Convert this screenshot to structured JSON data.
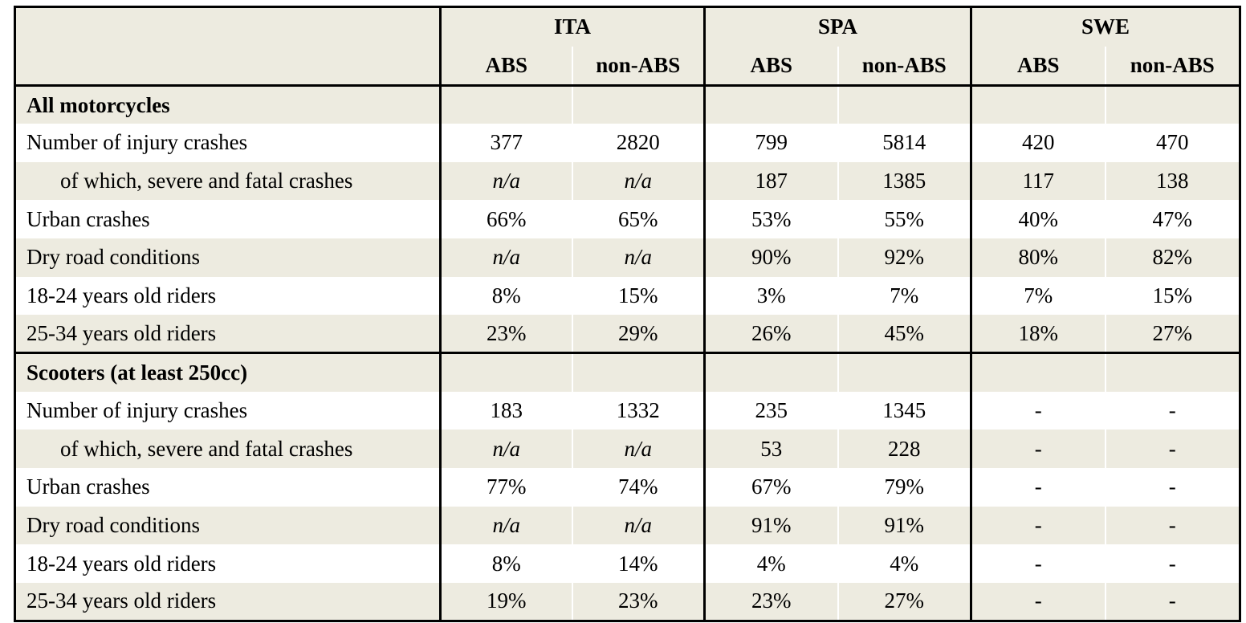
{
  "table": {
    "groups": [
      {
        "label": "ITA"
      },
      {
        "label": "SPA"
      },
      {
        "label": "SWE"
      }
    ],
    "subheaders": [
      "ABS",
      "non-ABS"
    ],
    "sections": [
      {
        "title": "All motorcycles",
        "rows": [
          {
            "label": "Number of injury crashes",
            "indent": false,
            "values": [
              "377",
              "2820",
              "799",
              "5814",
              "420",
              "470"
            ]
          },
          {
            "label": "of which, severe and fatal crashes",
            "indent": true,
            "values": [
              "n/a",
              "n/a",
              "187",
              "1385",
              "117",
              "138"
            ]
          },
          {
            "label": "Urban crashes",
            "indent": false,
            "values": [
              "66%",
              "65%",
              "53%",
              "55%",
              "40%",
              "47%"
            ]
          },
          {
            "label": "Dry road conditions",
            "indent": false,
            "values": [
              "n/a",
              "n/a",
              "90%",
              "92%",
              "80%",
              "82%"
            ]
          },
          {
            "label": "18-24 years old riders",
            "indent": false,
            "values": [
              "8%",
              "15%",
              "3%",
              "7%",
              "7%",
              "15%"
            ]
          },
          {
            "label": "25-34 years old riders",
            "indent": false,
            "values": [
              "23%",
              "29%",
              "26%",
              "45%",
              "18%",
              "27%"
            ]
          }
        ]
      },
      {
        "title": "Scooters (at least 250cc)",
        "rows": [
          {
            "label": "Number of injury crashes",
            "indent": false,
            "values": [
              "183",
              "1332",
              "235",
              "1345",
              "-",
              "-"
            ]
          },
          {
            "label": "of which, severe and fatal crashes",
            "indent": true,
            "values": [
              "n/a",
              "n/a",
              "53",
              "228",
              "-",
              "-"
            ]
          },
          {
            "label": "Urban crashes",
            "indent": false,
            "values": [
              "77%",
              "74%",
              "67%",
              "79%",
              "-",
              "-"
            ]
          },
          {
            "label": "Dry road conditions",
            "indent": false,
            "values": [
              "n/a",
              "n/a",
              "91%",
              "91%",
              "-",
              "-"
            ]
          },
          {
            "label": "18-24 years old riders",
            "indent": false,
            "values": [
              "8%",
              "14%",
              "4%",
              "4%",
              "-",
              "-"
            ]
          },
          {
            "label": "25-34 years old riders",
            "indent": false,
            "values": [
              "19%",
              "23%",
              "23%",
              "27%",
              "-",
              "-"
            ]
          }
        ]
      }
    ],
    "colors": {
      "row_shade": "#EDEBE0",
      "border": "#000000",
      "background": "#FFFFFF"
    }
  }
}
